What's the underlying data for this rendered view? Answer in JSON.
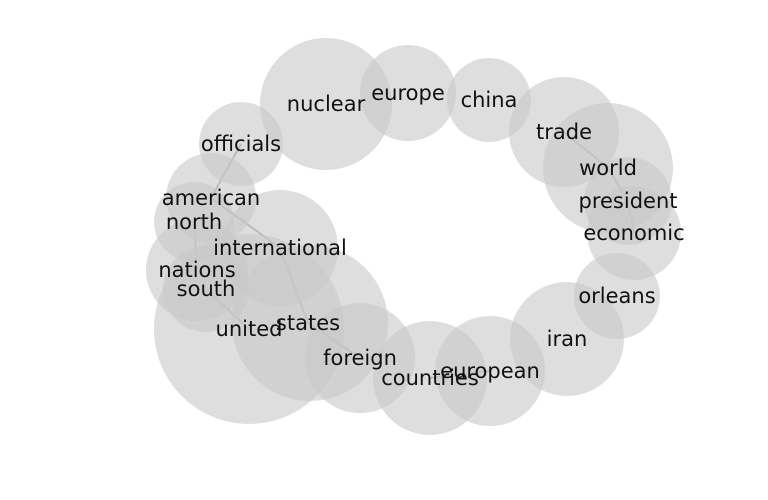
{
  "words": [
    {
      "id": "nuclear",
      "label": "nuclear"
    },
    {
      "id": "europe",
      "label": "europe"
    },
    {
      "id": "china",
      "label": "china"
    },
    {
      "id": "trade",
      "label": "trade"
    },
    {
      "id": "world",
      "label": "world"
    },
    {
      "id": "president",
      "label": "president"
    },
    {
      "id": "economic",
      "label": "economic"
    },
    {
      "id": "orleans",
      "label": "orleans"
    },
    {
      "id": "iran",
      "label": "iran"
    },
    {
      "id": "european",
      "label": "european"
    },
    {
      "id": "countries",
      "label": "countries"
    },
    {
      "id": "foreign",
      "label": "foreign"
    },
    {
      "id": "states",
      "label": "states"
    },
    {
      "id": "united",
      "label": "united"
    },
    {
      "id": "south",
      "label": "south"
    },
    {
      "id": "nations",
      "label": "nations"
    },
    {
      "id": "international",
      "label": "international"
    },
    {
      "id": "north",
      "label": "north"
    },
    {
      "id": "american",
      "label": "american"
    },
    {
      "id": "officials",
      "label": "officials"
    }
  ],
  "links": [
    [
      "officials",
      "american"
    ],
    [
      "american",
      "international"
    ],
    [
      "north",
      "nations"
    ],
    [
      "south",
      "united"
    ],
    [
      "international",
      "states"
    ],
    [
      "states",
      "foreign"
    ],
    [
      "trade",
      "world"
    ],
    [
      "world",
      "president"
    ],
    [
      "president",
      "economic"
    ],
    [
      "european",
      "countries"
    ]
  ]
}
